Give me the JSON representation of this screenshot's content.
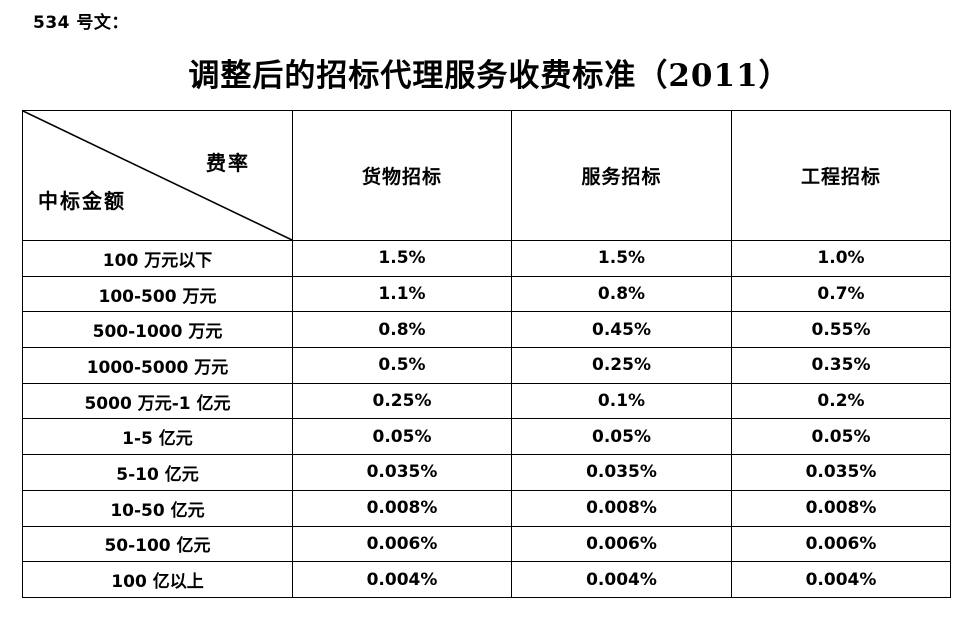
{
  "doc_label": "534 号文：",
  "title": "调整后的招标代理服务收费标准（2011）",
  "table": {
    "corner": {
      "top_right": "费率",
      "bottom_left": "中标金额"
    },
    "columns": [
      "货物招标",
      "服务招标",
      "工程招标"
    ],
    "rows": [
      {
        "amount": "100 万元以下",
        "goods": "1.5%",
        "services": "1.5%",
        "engineering": "1.0%"
      },
      {
        "amount": "100-500 万元",
        "goods": "1.1%",
        "services": "0.8%",
        "engineering": "0.7%"
      },
      {
        "amount": "500-1000 万元",
        "goods": "0.8%",
        "services": "0.45%",
        "engineering": "0.55%"
      },
      {
        "amount": "1000-5000 万元",
        "goods": "0.5%",
        "services": "0.25%",
        "engineering": "0.35%"
      },
      {
        "amount": "5000 万元-1 亿元",
        "goods": "0.25%",
        "services": "0.1%",
        "engineering": "0.2%"
      },
      {
        "amount": "1-5 亿元",
        "goods": "0.05%",
        "services": "0.05%",
        "engineering": "0.05%"
      },
      {
        "amount": "5-10 亿元",
        "goods": "0.035%",
        "services": "0.035%",
        "engineering": "0.035%"
      },
      {
        "amount": "10-50 亿元",
        "goods": "0.008%",
        "services": "0.008%",
        "engineering": "0.008%"
      },
      {
        "amount": "50-100 亿元",
        "goods": "0.006%",
        "services": "0.006%",
        "engineering": "0.006%"
      },
      {
        "amount": "100 亿以上",
        "goods": "0.004%",
        "services": "0.004%",
        "engineering": "0.004%"
      }
    ]
  },
  "line_color": "#000000"
}
